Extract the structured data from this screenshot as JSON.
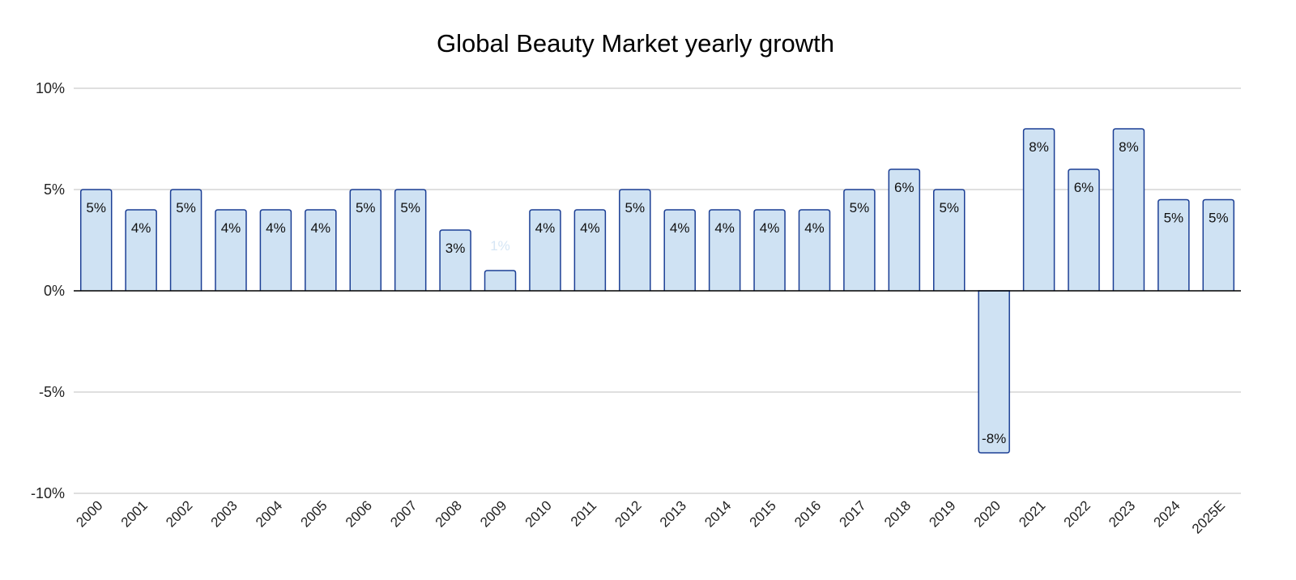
{
  "chart_data": {
    "type": "bar",
    "title": "Global Beauty Market yearly growth",
    "xlabel": "",
    "ylabel": "",
    "ylim": [
      -10,
      10
    ],
    "yticks": [
      "10%",
      "5%",
      "0%",
      "-5%",
      "-10%"
    ],
    "yticks_values": [
      10,
      5,
      0,
      -5,
      -10
    ],
    "grid": true,
    "legend": null,
    "categories": [
      "2000",
      "2001",
      "2002",
      "2003",
      "2004",
      "2005",
      "2006",
      "2007",
      "2008",
      "2009",
      "2010",
      "2011",
      "2012",
      "2013",
      "2014",
      "2015",
      "2016",
      "2017",
      "2018",
      "2019",
      "2020",
      "2021",
      "2022",
      "2023",
      "2024",
      "2025E"
    ],
    "values": [
      5,
      4,
      5,
      4,
      4,
      4,
      5,
      5,
      3,
      1,
      4,
      4,
      5,
      4,
      4,
      4,
      4,
      5,
      6,
      5,
      -8,
      8,
      6,
      8,
      4.5,
      4.5
    ],
    "labels": [
      "5%",
      "4%",
      "5%",
      "4%",
      "4%",
      "4%",
      "5%",
      "5%",
      "3%",
      "1%",
      "4%",
      "4%",
      "5%",
      "4%",
      "4%",
      "4%",
      "4%",
      "5%",
      "6%",
      "5%",
      "-8%",
      "8%",
      "6%",
      "8%",
      "5%",
      "5%"
    ],
    "colors": {
      "bar_fill": "#cfe2f3",
      "bar_stroke": "#1c3f95",
      "grid": "#cccccc",
      "axis": "#000000"
    }
  }
}
